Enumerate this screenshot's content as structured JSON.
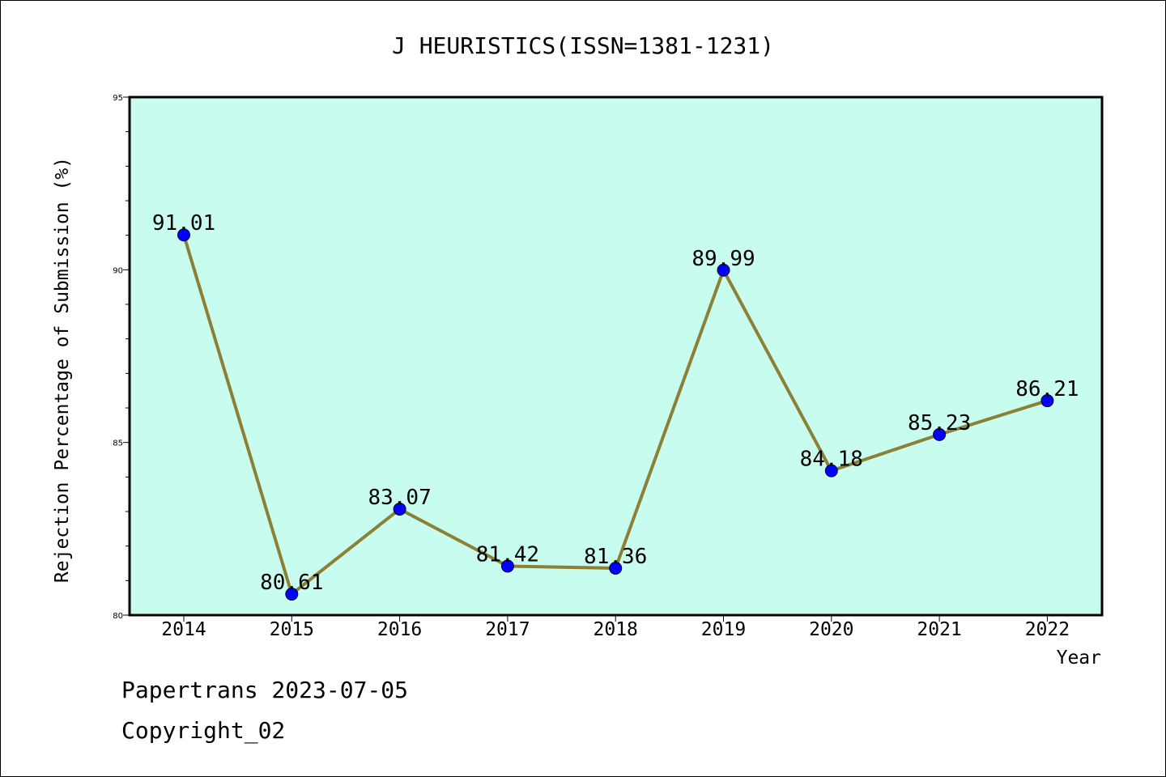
{
  "chart_data": {
    "type": "line",
    "title": "J HEURISTICS(ISSN=1381-1231)",
    "xlabel": "Year",
    "ylabel": "Rejection Percentage of Submission (%)",
    "categories": [
      "2014",
      "2015",
      "2016",
      "2017",
      "2018",
      "2019",
      "2020",
      "2021",
      "2022"
    ],
    "values": [
      91.01,
      80.61,
      83.07,
      81.42,
      81.36,
      89.99,
      84.18,
      85.23,
      86.21
    ],
    "data_labels": [
      "91.01",
      "80.61",
      "83.07",
      "81.42",
      "81.36",
      "89.99",
      "84.18",
      "85.23",
      "86.21"
    ],
    "ylim": [
      80,
      95
    ],
    "yticks": [
      80,
      85,
      90,
      95
    ],
    "grid": false,
    "line_color": "#8b8036",
    "marker_color": "#0000ff",
    "plot_background": "#c8fcee"
  },
  "footer": {
    "line1": "Papertrans 2023-07-05",
    "line2": "Copyright_02"
  }
}
